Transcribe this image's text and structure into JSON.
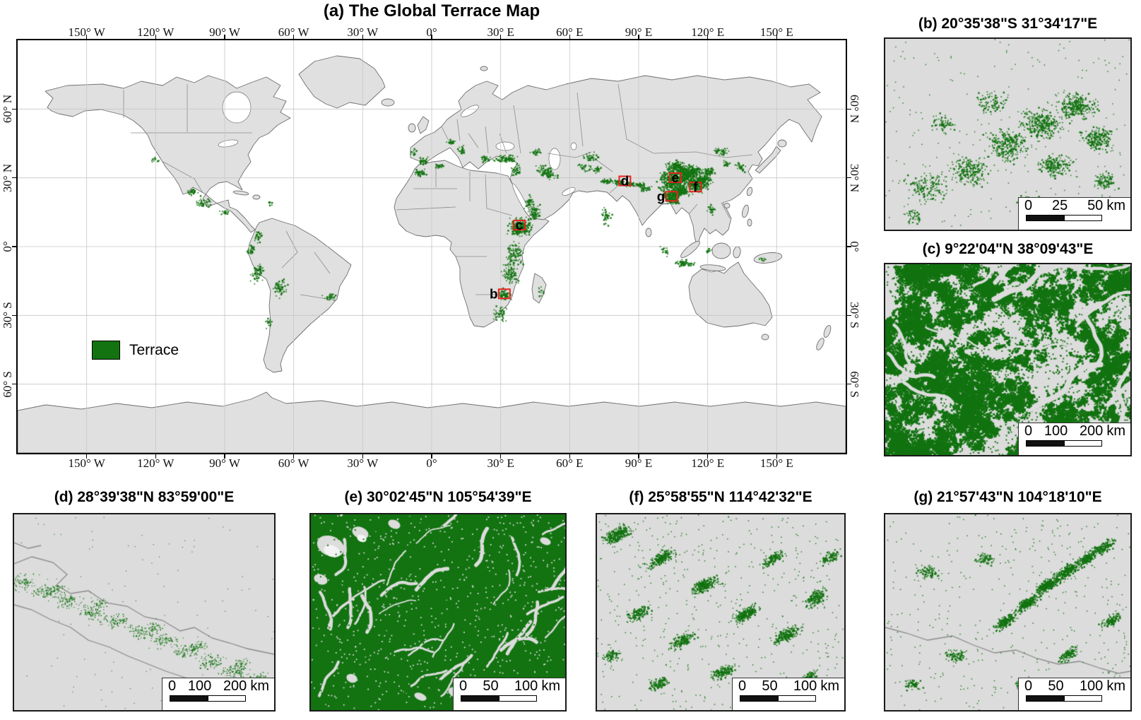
{
  "colors": {
    "terrace_green": "#127310",
    "land": "#e0e0e0",
    "ocean": "#ffffff",
    "panel_bg": "#dcdcdc",
    "coastline": "#6e6e6e",
    "country_border": "#8a8a8a",
    "grid": "#c6c6c6",
    "marker_red": "#e8231f",
    "scalebar_black": "#111111"
  },
  "panel_a": {
    "title": "(a) The Global Terrace Map",
    "legend_label": "Terrace",
    "x_ticks": [
      "150° W",
      "120° W",
      "90° W",
      "60° W",
      "30° W",
      "0°",
      "30° E",
      "60° E",
      "90° E",
      "120° E",
      "150° E"
    ],
    "y_ticks": [
      "60° N",
      "30° N",
      "0°",
      "30° S",
      "60° S"
    ],
    "markers": [
      {
        "label": "b",
        "lon": 31.57,
        "lat": -20.59
      },
      {
        "label": "c",
        "lon": 38.16,
        "lat": 9.37
      },
      {
        "label": "d",
        "lon": 83.98,
        "lat": 28.66
      },
      {
        "label": "e",
        "lon": 105.91,
        "lat": 30.05
      },
      {
        "label": "f",
        "lon": 114.71,
        "lat": 25.98
      },
      {
        "label": "g",
        "lon": 104.3,
        "lat": 21.96
      }
    ]
  },
  "detail_panels": [
    {
      "id": "b",
      "title": "(b) 20°35'38\"S 31°34'17\"E",
      "scalebar": {
        "zero": "0",
        "mid": "25",
        "end": "50",
        "unit": "km"
      }
    },
    {
      "id": "c",
      "title": "(c) 9°22'04\"N 38°09'43\"E",
      "scalebar": {
        "zero": "0",
        "mid": "100",
        "end": "200",
        "unit": "km"
      }
    },
    {
      "id": "d",
      "title": "(d) 28°39'38\"N 83°59'00\"E",
      "scalebar": {
        "zero": "0",
        "mid": "100",
        "end": "200",
        "unit": "km"
      }
    },
    {
      "id": "e",
      "title": "(e) 30°02'45\"N 105°54'39\"E",
      "scalebar": {
        "zero": "0",
        "mid": "50",
        "end": "100",
        "unit": "km"
      }
    },
    {
      "id": "f",
      "title": "(f) 25°58'55\"N 114°42'32\"E",
      "scalebar": {
        "zero": "0",
        "mid": "50",
        "end": "100",
        "unit": "km"
      }
    },
    {
      "id": "g",
      "title": "(g) 21°57'43\"N 104°18'10\"E",
      "scalebar": {
        "zero": "0",
        "mid": "50",
        "end": "100",
        "unit": "km"
      }
    }
  ]
}
